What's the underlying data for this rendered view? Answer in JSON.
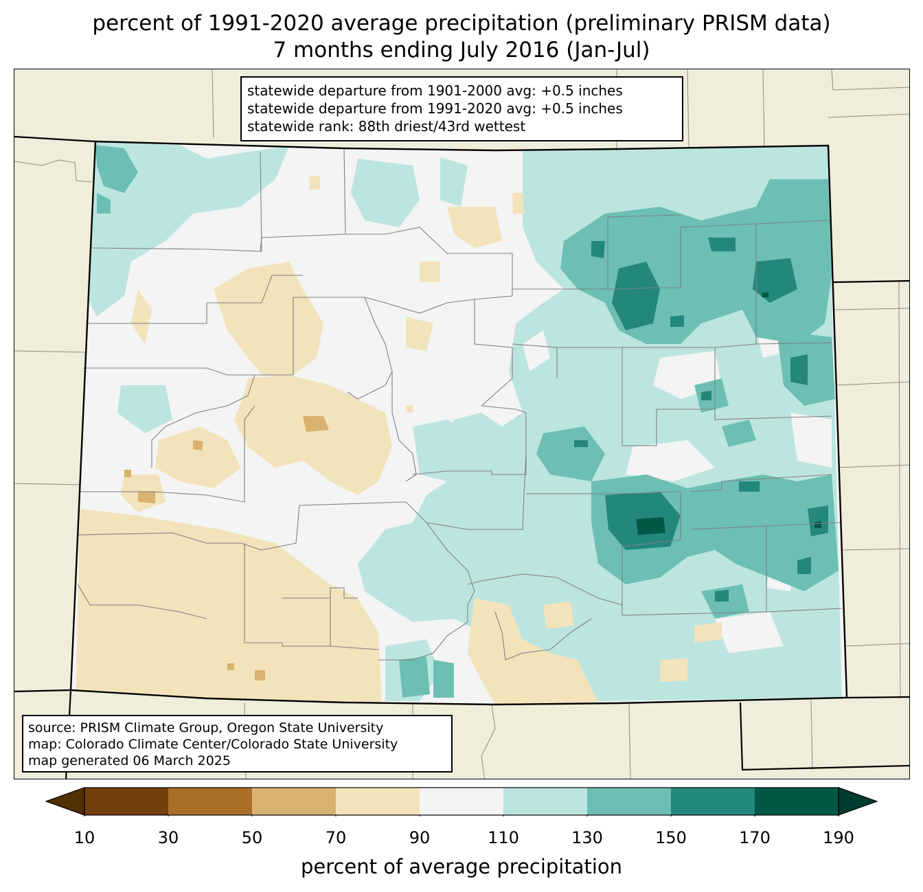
{
  "title": {
    "line1": "percent of 1991-2020 average precipitation (preliminary PRISM data)",
    "line2": "7 months ending July 2016 (Jan-Jul)"
  },
  "stats": {
    "line1": "statewide departure from 1901-2000 avg: +0.5 inches",
    "line2": "statewide departure from 1991-2020 avg: +0.5 inches",
    "line3": "statewide rank: 88th driest/43rd wettest"
  },
  "source": {
    "line1": "source: PRISM Climate Group, Oregon State University",
    "line2": "map: Colorado Climate Center/Colorado State University",
    "line3": "map generated 06 March 2025"
  },
  "colorbar": {
    "label": "percent of average precipitation",
    "ticks": [
      "10",
      "30",
      "50",
      "70",
      "90",
      "110",
      "130",
      "150",
      "170",
      "190"
    ],
    "under_color": "#543005",
    "over_color": "#003c30",
    "bins": [
      {
        "min": 10,
        "max": 30,
        "color": "#71400c"
      },
      {
        "min": 30,
        "max": 50,
        "color": "#a96e27"
      },
      {
        "min": 50,
        "max": 70,
        "color": "#d8b26e"
      },
      {
        "min": 70,
        "max": 90,
        "color": "#f3e3bb"
      },
      {
        "min": 90,
        "max": 110,
        "color": "#f3f4f3"
      },
      {
        "min": 110,
        "max": 130,
        "color": "#bde5e0"
      },
      {
        "min": 130,
        "max": 150,
        "color": "#6cbfb2"
      },
      {
        "min": 150,
        "max": 170,
        "color": "#24877c"
      },
      {
        "min": 170,
        "max": 190,
        "color": "#015847"
      }
    ]
  },
  "colors": {
    "neighbor_land": "#efeedb",
    "state_border": "#000000",
    "county_lines": "#808080"
  }
}
